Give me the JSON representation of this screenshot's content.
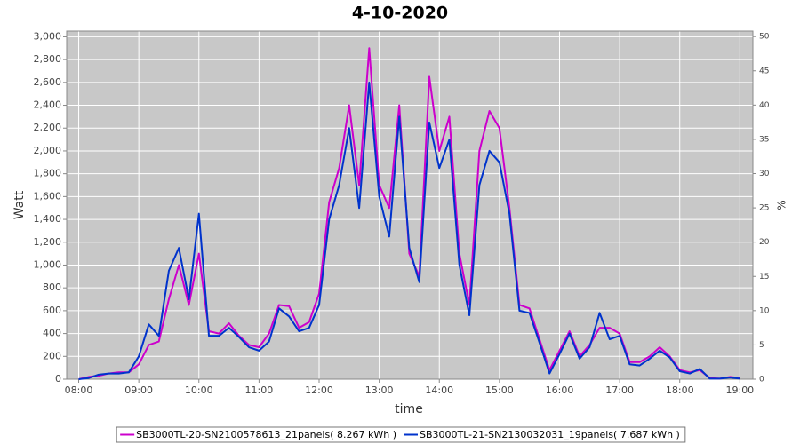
{
  "chart_data": {
    "type": "line",
    "title": "4-10-2020",
    "x_label": "time",
    "y_label": "Watt",
    "y2_label": "%",
    "x": [
      "08:00",
      "08:10",
      "08:20",
      "08:30",
      "08:40",
      "08:50",
      "09:00",
      "09:10",
      "09:20",
      "09:30",
      "09:40",
      "09:50",
      "10:00",
      "10:10",
      "10:20",
      "10:30",
      "10:40",
      "10:50",
      "11:00",
      "11:10",
      "11:20",
      "11:30",
      "11:40",
      "11:50",
      "12:00",
      "12:10",
      "12:20",
      "12:30",
      "12:40",
      "12:50",
      "13:00",
      "13:10",
      "13:20",
      "13:30",
      "13:40",
      "13:50",
      "14:00",
      "14:10",
      "14:20",
      "14:30",
      "14:40",
      "14:50",
      "15:00",
      "15:10",
      "15:20",
      "15:30",
      "15:40",
      "15:50",
      "16:00",
      "16:10",
      "16:20",
      "16:30",
      "16:40",
      "16:50",
      "17:00",
      "17:10",
      "17:20",
      "17:30",
      "17:40",
      "17:50",
      "18:00",
      "18:10",
      "18:20",
      "18:30",
      "18:40",
      "18:50",
      "19:00"
    ],
    "series": [
      {
        "name": "SB3000TL-20-SN2100578613_21panels( 8.267 kWh )",
        "color": "#cc00cc",
        "values": [
          0,
          20,
          30,
          50,
          60,
          60,
          130,
          300,
          330,
          700,
          1000,
          650,
          1100,
          420,
          400,
          490,
          380,
          300,
          280,
          400,
          650,
          640,
          450,
          500,
          750,
          1550,
          1850,
          2400,
          1700,
          2900,
          1700,
          1500,
          2400,
          1100,
          900,
          2650,
          2000,
          2300,
          1100,
          650,
          2000,
          2350,
          2200,
          1500,
          650,
          620,
          350,
          80,
          250,
          420,
          200,
          300,
          450,
          450,
          400,
          150,
          150,
          200,
          280,
          200,
          80,
          60,
          80,
          10,
          5,
          20,
          10
        ]
      },
      {
        "name": "SB3000TL-21-SN2130032031_19panels( 7.687 kWh )",
        "color": "#0033cc",
        "values": [
          0,
          10,
          40,
          50,
          50,
          60,
          200,
          480,
          380,
          950,
          1150,
          700,
          1450,
          380,
          380,
          450,
          370,
          280,
          250,
          330,
          620,
          550,
          420,
          450,
          650,
          1400,
          1700,
          2200,
          1500,
          2600,
          1600,
          1250,
          2300,
          1150,
          850,
          2250,
          1850,
          2100,
          1000,
          560,
          1700,
          2000,
          1900,
          1450,
          600,
          580,
          320,
          50,
          220,
          400,
          180,
          280,
          580,
          350,
          380,
          130,
          120,
          180,
          250,
          190,
          70,
          50,
          90,
          5,
          5,
          15,
          5
        ]
      }
    ],
    "xlim": [
      "07:48",
      "19:13"
    ],
    "xticks": [
      "08:00",
      "09:00",
      "10:00",
      "11:00",
      "12:00",
      "13:00",
      "14:00",
      "15:00",
      "16:00",
      "17:00",
      "18:00",
      "19:00"
    ],
    "ylim": [
      0,
      3050
    ],
    "yticks": [
      0,
      200,
      400,
      600,
      800,
      {
        "value": 1000,
        "label": "1,000"
      },
      {
        "value": 1200,
        "label": "1,200"
      },
      {
        "value": 1400,
        "label": "1,400"
      },
      {
        "value": 1600,
        "label": "1,600"
      },
      {
        "value": 1800,
        "label": "1,800"
      },
      {
        "value": 2000,
        "label": "2,000"
      },
      {
        "value": 2200,
        "label": "2,200"
      },
      {
        "value": 2400,
        "label": "2,400"
      },
      {
        "value": 2600,
        "label": "2,600"
      },
      {
        "value": 2800,
        "label": "2,800"
      },
      {
        "value": 3000,
        "label": "3,000"
      }
    ],
    "y2lim": [
      0,
      50.8
    ],
    "y2ticks": [
      0,
      5,
      10,
      15,
      20,
      25,
      30,
      35,
      40,
      45,
      50
    ],
    "grid": true,
    "legend": "bottom"
  }
}
